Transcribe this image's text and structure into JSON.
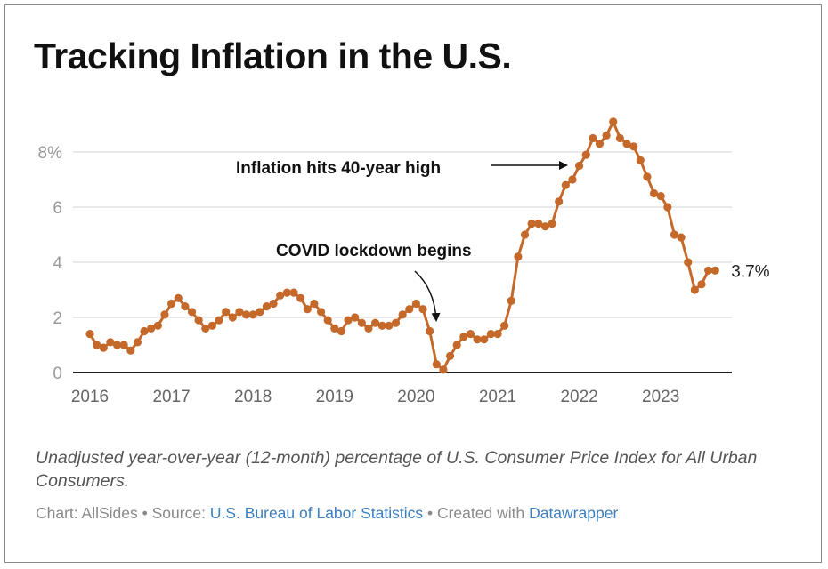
{
  "title": "Tracking Inflation in the U.S.",
  "description": "Unadjusted year-over-year (12-month) percentage of U.S. Consumer Price Index for All Urban Consumers.",
  "credits": {
    "chart_prefix": "Chart: AllSides • Source: ",
    "source_link": "U.S. Bureau of Labor Statistics",
    "middle": " • Created with ",
    "tool_link": "Datawrapper"
  },
  "colors": {
    "line": "#c4692a",
    "link": "#3a7fc1"
  },
  "chart_data": {
    "type": "line",
    "title": "Tracking Inflation in the U.S.",
    "x_start": "2016-01",
    "x_frequency": "monthly",
    "x_tick_labels": [
      "2016",
      "2017",
      "2018",
      "2019",
      "2020",
      "2021",
      "2022",
      "2023"
    ],
    "y_tick_labels": [
      "0",
      "2",
      "4",
      "6",
      "8%"
    ],
    "y_ticks": [
      0,
      2,
      4,
      6,
      8
    ],
    "ylim": [
      0,
      8
    ],
    "grid": true,
    "values": [
      1.4,
      1.0,
      0.9,
      1.1,
      1.0,
      1.0,
      0.8,
      1.1,
      1.5,
      1.6,
      1.7,
      2.1,
      2.5,
      2.7,
      2.4,
      2.2,
      1.9,
      1.6,
      1.7,
      1.9,
      2.2,
      2.0,
      2.2,
      2.1,
      2.1,
      2.2,
      2.4,
      2.5,
      2.8,
      2.9,
      2.9,
      2.7,
      2.3,
      2.5,
      2.2,
      1.9,
      1.6,
      1.5,
      1.9,
      2.0,
      1.8,
      1.6,
      1.8,
      1.7,
      1.7,
      1.8,
      2.1,
      2.3,
      2.5,
      2.3,
      1.5,
      0.3,
      0.1,
      0.6,
      1.0,
      1.3,
      1.4,
      1.2,
      1.2,
      1.4,
      1.4,
      1.7,
      2.6,
      4.2,
      5.0,
      5.4,
      5.4,
      5.3,
      5.4,
      6.2,
      6.8,
      7.0,
      7.5,
      7.9,
      8.5,
      8.3,
      8.6,
      9.1,
      8.5,
      8.3,
      8.2,
      7.7,
      7.1,
      6.5,
      6.4,
      6.0,
      5.0,
      4.9,
      4.0,
      3.0,
      3.2,
      3.7,
      3.7
    ],
    "end_label": "3.7%",
    "annotations": [
      {
        "text": "Inflation hits 40-year high",
        "target": "2021-11"
      },
      {
        "text": "COVID lockdown begins",
        "target": "2020-04"
      }
    ]
  }
}
